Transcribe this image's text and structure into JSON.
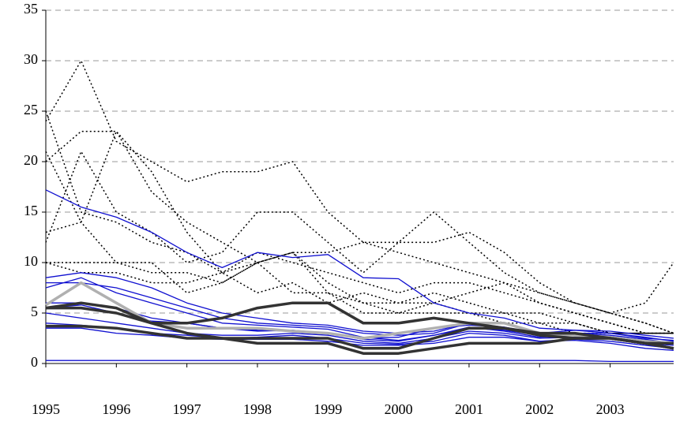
{
  "chart_data": {
    "type": "line",
    "x": [
      1995,
      1995.5,
      1996,
      1996.5,
      1997,
      1997.5,
      1998,
      1998.5,
      1999,
      1999.5,
      2000,
      2000.5,
      2001,
      2001.5,
      2002,
      2002.5,
      2003,
      2003.5,
      2003.9
    ],
    "xlim": [
      1995,
      2003.9
    ],
    "xticks": [
      1995,
      1996,
      1997,
      1998,
      1999,
      2000,
      2001,
      2002,
      2003
    ],
    "ylim": [
      0,
      35
    ],
    "yticks": [
      0,
      5,
      10,
      15,
      20,
      25,
      30,
      35
    ],
    "grid": true,
    "series": [
      {
        "color": "#000000",
        "style": "dotted",
        "values": [
          24,
          30,
          22,
          20,
          18,
          19,
          19,
          20,
          15,
          12,
          12,
          15,
          12,
          9,
          7,
          6,
          5,
          4,
          3
        ]
      },
      {
        "color": "#000000",
        "style": "dotted",
        "values": [
          20,
          23,
          23,
          17,
          14,
          12,
          10,
          11,
          8,
          6,
          5,
          6,
          7,
          8,
          6,
          5,
          4,
          3,
          3
        ]
      },
      {
        "color": "#000000",
        "style": "dotted",
        "values": [
          12,
          21,
          15,
          13,
          10,
          11,
          15,
          15,
          12,
          9,
          12,
          12,
          13,
          11,
          8,
          6,
          5,
          4,
          3
        ]
      },
      {
        "color": "#000000",
        "style": "dotted",
        "values": [
          10,
          10,
          10,
          9,
          9,
          8,
          10,
          11,
          11,
          12,
          11,
          10,
          9,
          8,
          7,
          6,
          5,
          6,
          10
        ]
      },
      {
        "color": "#000000",
        "style": "dotted",
        "values": [
          25,
          15,
          14,
          12,
          11,
          9,
          11,
          10,
          9,
          8,
          7,
          8,
          8,
          7,
          6,
          5,
          4,
          3,
          3
        ]
      },
      {
        "color": "#000000",
        "style": "dotted",
        "values": [
          13,
          14,
          10,
          10,
          7,
          8,
          10,
          11,
          7,
          6,
          6,
          6,
          5,
          5,
          5,
          4,
          3,
          3,
          3
        ]
      },
      {
        "color": "#000000",
        "style": "dotted",
        "values": [
          21,
          14,
          23,
          19,
          13,
          9,
          10,
          7,
          7,
          5,
          5,
          5,
          5,
          4,
          4,
          4,
          3,
          3,
          3
        ]
      },
      {
        "color": "#000000",
        "style": "dotted",
        "values": [
          10,
          9,
          9,
          8,
          8,
          9,
          7,
          8,
          6,
          7,
          6,
          7,
          6,
          5,
          4,
          3,
          3,
          3,
          3
        ]
      },
      {
        "color": "#1010d0",
        "style": "thin",
        "values": [
          17.2,
          15.5,
          14.5,
          13,
          11,
          9.5,
          11,
          10.5,
          10.8,
          8.5,
          8.4,
          6,
          5,
          4.5,
          3.5,
          3.3,
          3.2,
          2.8,
          2.5
        ]
      },
      {
        "color": "#1010d0",
        "style": "thin",
        "values": [
          8.5,
          9,
          8.5,
          7.5,
          6,
          5,
          4.5,
          4,
          3.8,
          3.2,
          3,
          3.2,
          4,
          3.5,
          3,
          3.3,
          3,
          2.5,
          2.3
        ]
      },
      {
        "color": "#1010d0",
        "style": "thin",
        "values": [
          8,
          8,
          7.5,
          6.5,
          5.5,
          4.5,
          4,
          3.8,
          3.6,
          3,
          2.8,
          3,
          4,
          3.6,
          2.8,
          3,
          3,
          2.6,
          2.2
        ]
      },
      {
        "color": "#1010d0",
        "style": "thin",
        "values": [
          7.5,
          8.5,
          7,
          6,
          5,
          4,
          3.8,
          3.6,
          3.4,
          2.6,
          2.3,
          2.8,
          3.5,
          3.3,
          2.8,
          2.8,
          2.6,
          2.3,
          2
        ]
      },
      {
        "color": "#1010d0",
        "style": "thin",
        "values": [
          5.5,
          5.8,
          5,
          4.2,
          4,
          3.5,
          3.2,
          3.3,
          3,
          2.4,
          2.2,
          2.8,
          3.6,
          3.2,
          2.6,
          2.8,
          2.6,
          2.2,
          2
        ]
      },
      {
        "color": "#1010d0",
        "style": "thin",
        "values": [
          5,
          4.5,
          4,
          3.5,
          3,
          2.8,
          2.8,
          3,
          2.8,
          2.2,
          2,
          2.5,
          3.2,
          3,
          2.5,
          2.6,
          2.5,
          2,
          1.8
        ]
      },
      {
        "color": "#1010d0",
        "style": "thin",
        "values": [
          4,
          3.8,
          3.5,
          3,
          2.8,
          2.5,
          2.6,
          2.8,
          2.5,
          2,
          1.9,
          2.2,
          3,
          2.8,
          2.2,
          2.4,
          2.2,
          1.8,
          1.5
        ]
      },
      {
        "color": "#1010d0",
        "style": "thin",
        "values": [
          3.5,
          3.5,
          3,
          2.8,
          2.5,
          2.4,
          2.4,
          2.4,
          2.2,
          1.8,
          1.8,
          2,
          2.6,
          2.6,
          2.2,
          2.3,
          2,
          1.5,
          1.3
        ]
      },
      {
        "color": "#1010d0",
        "style": "thin",
        "values": [
          0.3,
          0.3,
          0.3,
          0.3,
          0.3,
          0.3,
          0.3,
          0.3,
          0.3,
          0.3,
          0.3,
          0.3,
          0.3,
          0.3,
          0.3,
          0.3,
          0.2,
          0.2,
          0.2
        ]
      },
      {
        "color": "#1010d0",
        "style": "thin",
        "values": [
          6,
          6,
          5.5,
          4.5,
          4,
          3.5,
          3.3,
          3.2,
          3,
          2.5,
          2.6,
          3.5,
          3.8,
          3.6,
          3,
          3,
          2.8,
          2.4,
          2
        ]
      },
      {
        "color": "#b0b0b0",
        "style": "thick",
        "values": [
          5.8,
          8,
          6,
          4,
          3.5,
          3.5,
          3.5,
          3.2,
          3,
          2.5,
          3,
          3.5,
          4,
          4,
          3,
          2.8,
          2.6,
          2.2,
          2
        ]
      },
      {
        "color": "#333333",
        "style": "thick",
        "values": [
          5.5,
          6,
          5.5,
          4,
          4,
          4.5,
          5.5,
          6,
          6,
          4,
          4,
          4.5,
          4,
          3.5,
          3,
          3,
          2.5,
          2,
          2
        ]
      },
      {
        "color": "#333333",
        "style": "thick",
        "values": [
          3.7,
          3.7,
          3.5,
          3,
          2.5,
          2.5,
          2.5,
          2.5,
          2.5,
          1.5,
          1.5,
          2.5,
          3.5,
          3.5,
          2.8,
          2.5,
          2.5,
          2,
          1.5
        ]
      },
      {
        "color": "#333333",
        "style": "thick",
        "values": [
          5.5,
          5.5,
          5,
          4,
          3,
          2.5,
          2,
          2,
          2,
          1,
          1,
          1.5,
          2,
          2,
          2,
          2.5,
          2.5,
          2,
          1.5
        ]
      }
    ]
  }
}
